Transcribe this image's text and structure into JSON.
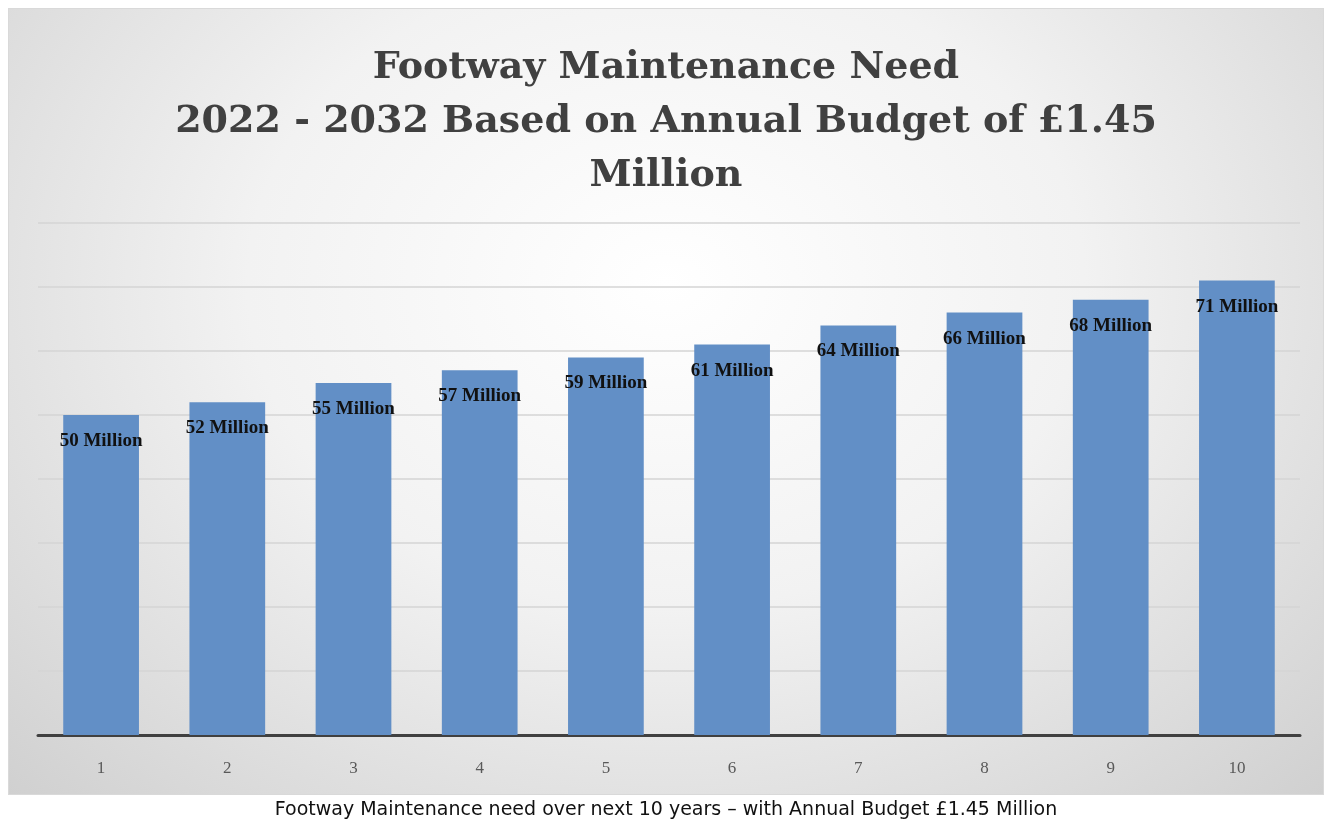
{
  "chart_data": {
    "type": "bar",
    "title": "Footway Maintenance Need\n2022 - 2032 Based on Annual Budget of £1.45\nMillion",
    "categories": [
      "1",
      "2",
      "3",
      "4",
      "5",
      "6",
      "7",
      "8",
      "9",
      "10"
    ],
    "values": [
      50,
      52,
      55,
      57,
      59,
      61,
      64,
      66,
      68,
      71
    ],
    "value_labels": [
      "50 Million",
      "52 Million",
      "55 Million",
      "57 Million",
      "59 Million",
      "61 Million",
      "64 Million",
      "66 Million",
      "68 Million",
      "71 Million"
    ],
    "color": "#628fc6",
    "ylim": [
      0,
      80
    ],
    "yticks": [
      {
        "value": 0,
        "label": null
      },
      {
        "value": 10,
        "label": null
      },
      {
        "value": 20,
        "label": null
      },
      {
        "value": 30,
        "label": null
      },
      {
        "value": 40,
        "label": null
      },
      {
        "value": 50,
        "label": null
      },
      {
        "value": 60,
        "label": null
      },
      {
        "value": 70,
        "label": null
      },
      {
        "value": 80,
        "label": null
      }
    ],
    "tick_labels": "x",
    "grid": "y",
    "annotations": [
      "Footway Maintenance need over next 10 years – with Annual Budget £1.45 Million"
    ]
  }
}
